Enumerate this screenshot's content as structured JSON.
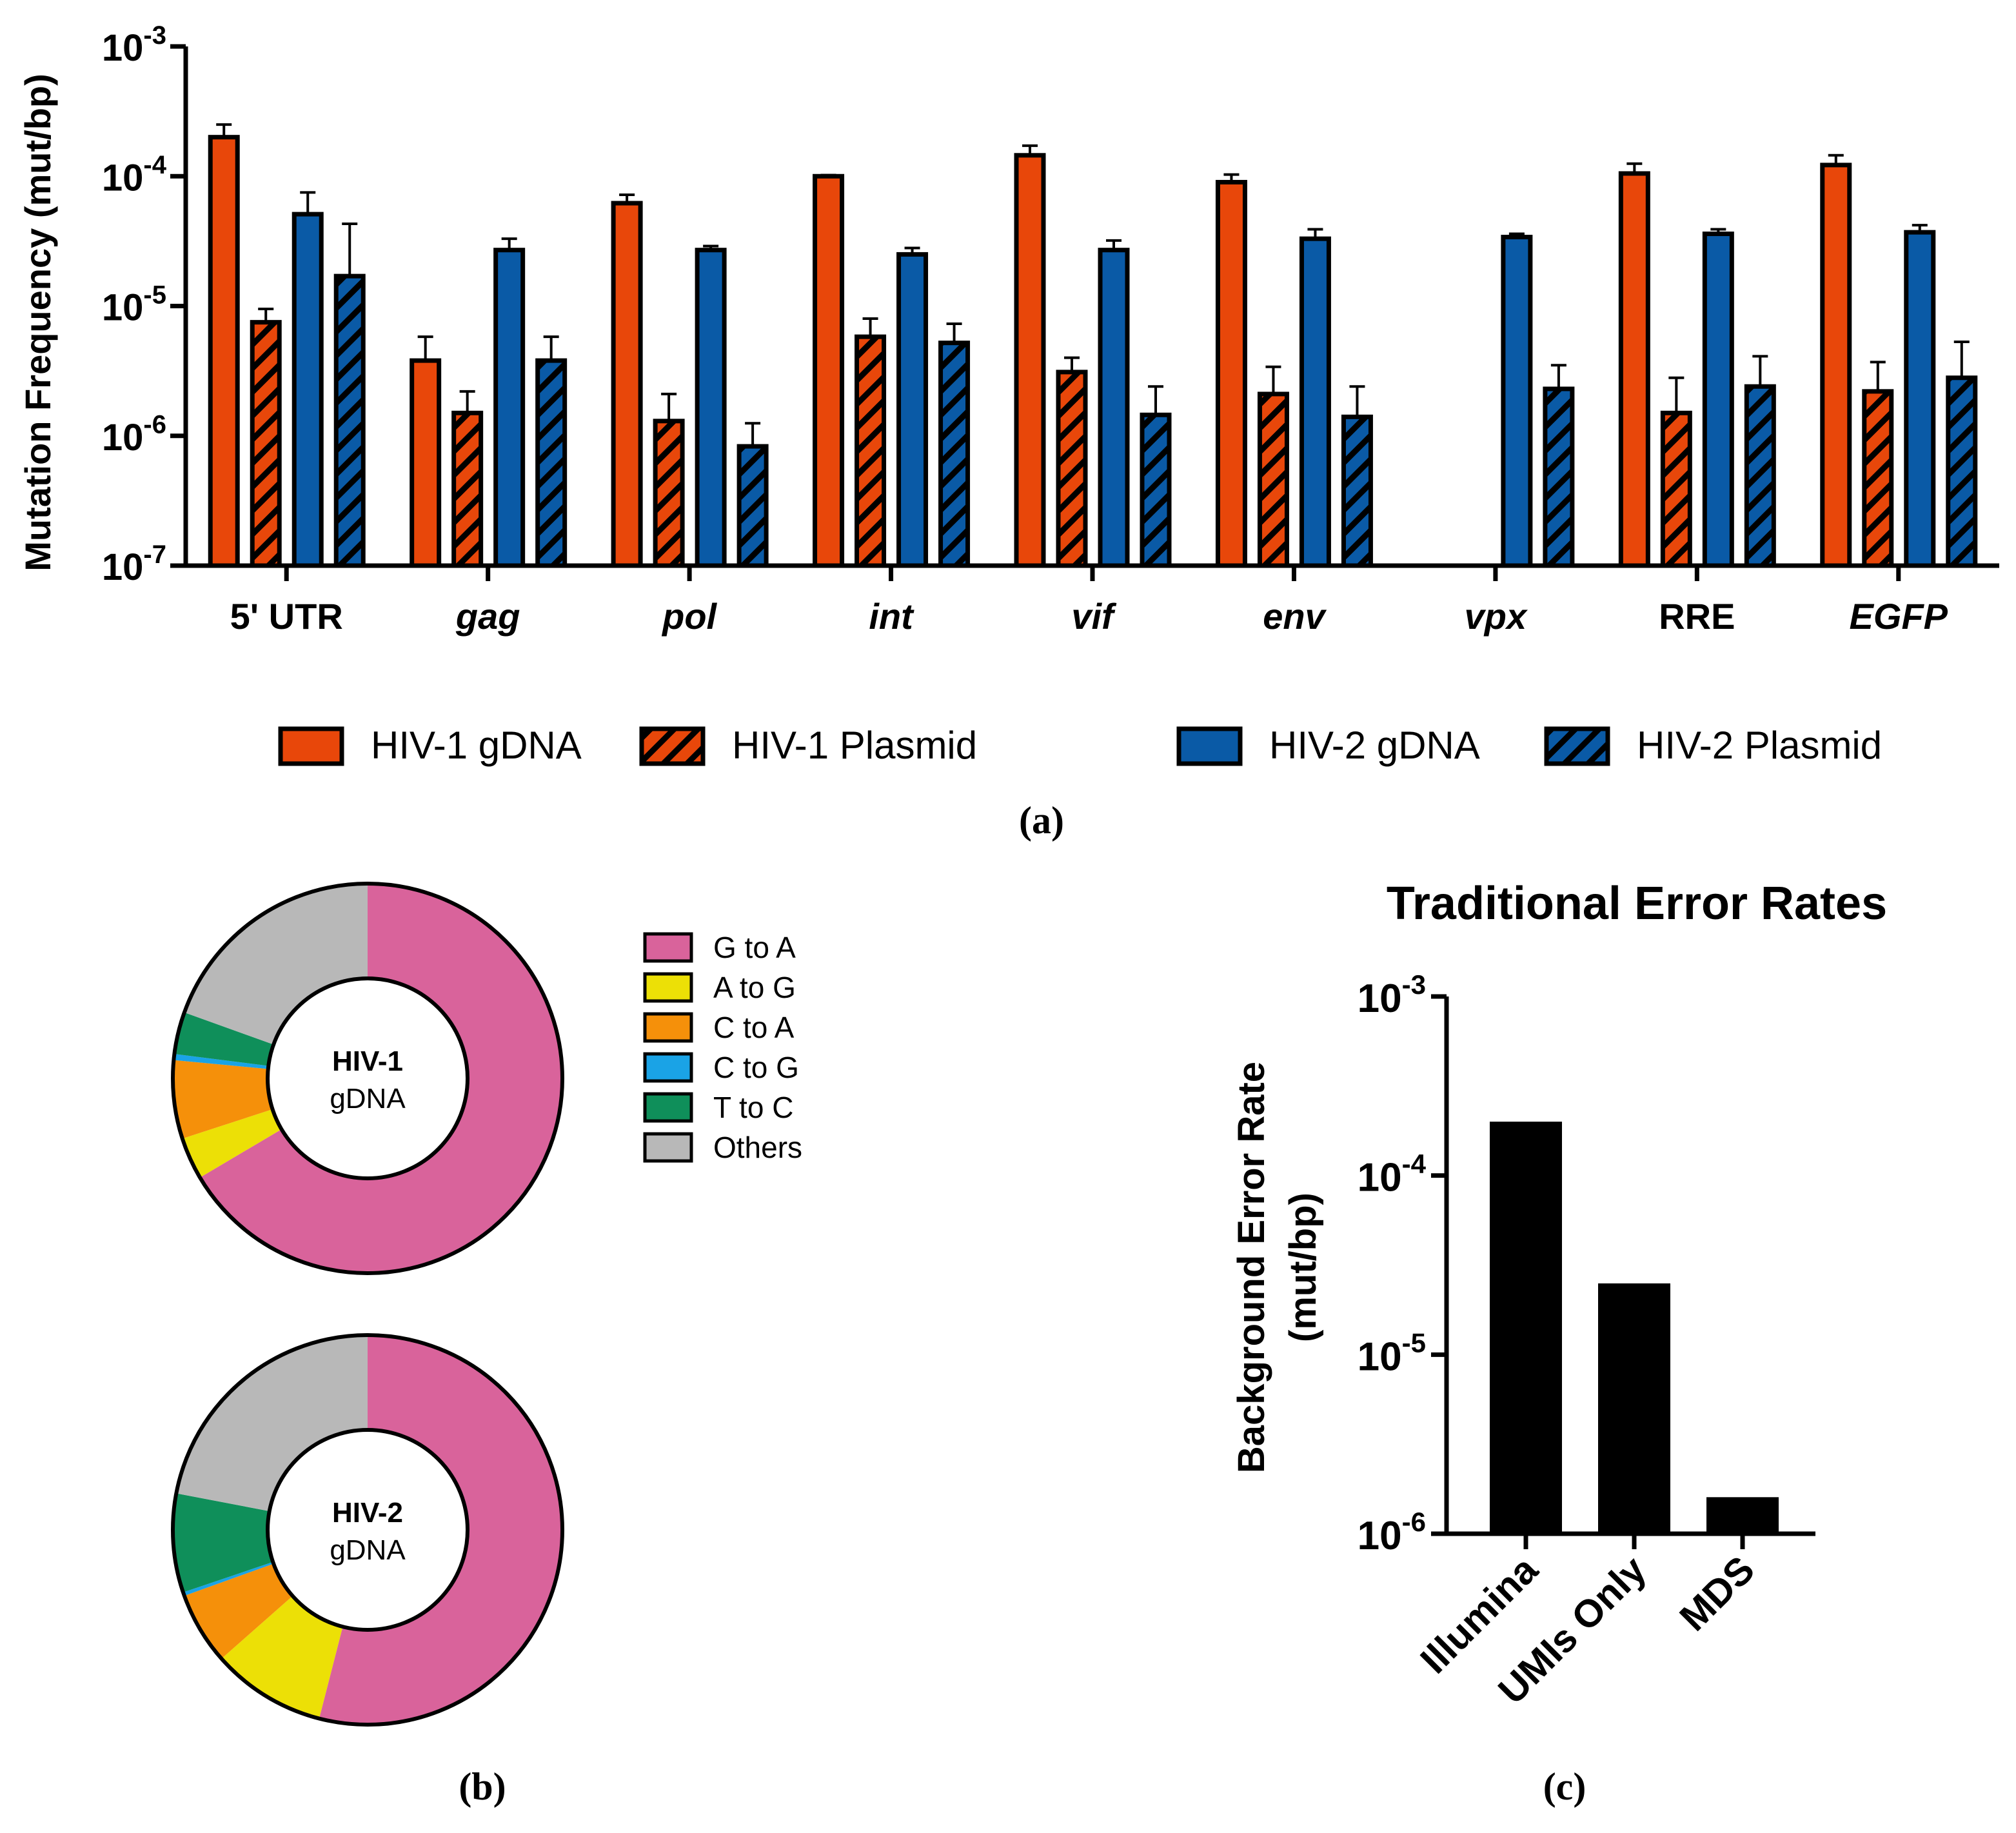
{
  "chart_data": [
    {
      "panel": "a",
      "panel_label": "(a)",
      "type": "bar",
      "scale": "log",
      "ylabel": "Mutation Frequency (mut/bp)",
      "ylim": [
        1e-07,
        0.001
      ],
      "y_ticks": [
        {
          "value": 1e-07,
          "base": "10",
          "exp": "-7"
        },
        {
          "value": 1e-06,
          "base": "10",
          "exp": "-6"
        },
        {
          "value": 1e-05,
          "base": "10",
          "exp": "-5"
        },
        {
          "value": 0.0001,
          "base": "10",
          "exp": "-4"
        },
        {
          "value": 0.001,
          "base": "10",
          "exp": "-3"
        }
      ],
      "categories": [
        "5' UTR",
        "gag",
        "pol",
        "int",
        "vif",
        "env",
        "vpx",
        "RRE",
        "EGFP"
      ],
      "category_italic": [
        false,
        true,
        true,
        true,
        true,
        true,
        true,
        false,
        true
      ],
      "series": [
        {
          "name": "HIV-1 gDNA",
          "color": "#e8470a",
          "hatched": false,
          "values": [
            0.0002,
            3.8e-06,
            6.2e-05,
            0.0001,
            0.000145,
            9e-05,
            null,
            0.000105,
            0.000122
          ],
          "errors": [
            0.00025,
            5.8e-06,
            7.2e-05,
            0.000102,
            0.000172,
            0.000103,
            null,
            0.000125,
            0.000145
          ]
        },
        {
          "name": "HIV-1 Plasmid",
          "color": "#e8470a",
          "hatched": true,
          "values": [
            7.5e-06,
            1.5e-06,
            1.3e-06,
            5.8e-06,
            3.1e-06,
            2.1e-06,
            null,
            1.5e-06,
            2.2e-06
          ],
          "errors": [
            9.5e-06,
            2.2e-06,
            2.1e-06,
            8e-06,
            4e-06,
            3.4e-06,
            null,
            2.8e-06,
            3.7e-06
          ]
        },
        {
          "name": "HIV-2 gDNA",
          "color": "#0a5aa6",
          "hatched": false,
          "values": [
            5.1e-05,
            2.7e-05,
            2.7e-05,
            2.5e-05,
            2.7e-05,
            3.3e-05,
            3.4e-05,
            3.6e-05,
            3.7e-05
          ],
          "errors": [
            7.5e-05,
            3.3e-05,
            2.9e-05,
            2.8e-05,
            3.2e-05,
            3.9e-05,
            3.6e-05,
            3.9e-05,
            4.2e-05
          ]
        },
        {
          "name": "HIV-2 Plasmid",
          "color": "#0a5aa6",
          "hatched": true,
          "values": [
            1.7e-05,
            3.8e-06,
            8.3e-07,
            5.2e-06,
            1.45e-06,
            1.4e-06,
            2.3e-06,
            2.4e-06,
            2.8e-06
          ],
          "errors": [
            4.3e-05,
            5.8e-06,
            1.25e-06,
            7.3e-06,
            2.4e-06,
            2.4e-06,
            3.5e-06,
            4.1e-06,
            5.3e-06
          ]
        }
      ],
      "legend_position": "bottom"
    },
    {
      "panel": "b",
      "panel_label": "(b)",
      "type": "pie",
      "style": "donut",
      "legend": [
        {
          "label": "G to A",
          "color": "#d9639b"
        },
        {
          "label": "A to G",
          "color": "#ece006"
        },
        {
          "label": "C to A",
          "color": "#f5900a"
        },
        {
          "label": "C to G",
          "color": "#1aa3e6"
        },
        {
          "label": "T to C",
          "color": "#0f8f5a"
        },
        {
          "label": "Others",
          "color": "#b8b8b8"
        }
      ],
      "charts": [
        {
          "center_title": "HIV-1",
          "center_subtitle": "gDNA",
          "slices": [
            66.5,
            3.5,
            6.5,
            0.5,
            3.5,
            19.5
          ]
        },
        {
          "center_title": "HIV-2",
          "center_subtitle": "gDNA",
          "slices": [
            54.0,
            9.5,
            6.0,
            0.3,
            8.2,
            22.0
          ]
        }
      ]
    },
    {
      "panel": "c",
      "panel_label": "(c)",
      "type": "bar",
      "scale": "log",
      "title": "Traditional Error Rates",
      "ylabel_line1": "Background Error Rate",
      "ylabel_line2": "(mut/bp)",
      "ylim": [
        1e-06,
        0.001
      ],
      "y_ticks": [
        {
          "value": 1e-06,
          "base": "10",
          "exp": "-6"
        },
        {
          "value": 1e-05,
          "base": "10",
          "exp": "-5"
        },
        {
          "value": 0.0001,
          "base": "10",
          "exp": "-4"
        },
        {
          "value": 0.001,
          "base": "10",
          "exp": "-3"
        }
      ],
      "categories": [
        "Illumina",
        "UMIs Only",
        "MDS"
      ],
      "values": [
        0.0002,
        2.5e-05,
        1.6e-06
      ],
      "color": "#000000"
    }
  ]
}
